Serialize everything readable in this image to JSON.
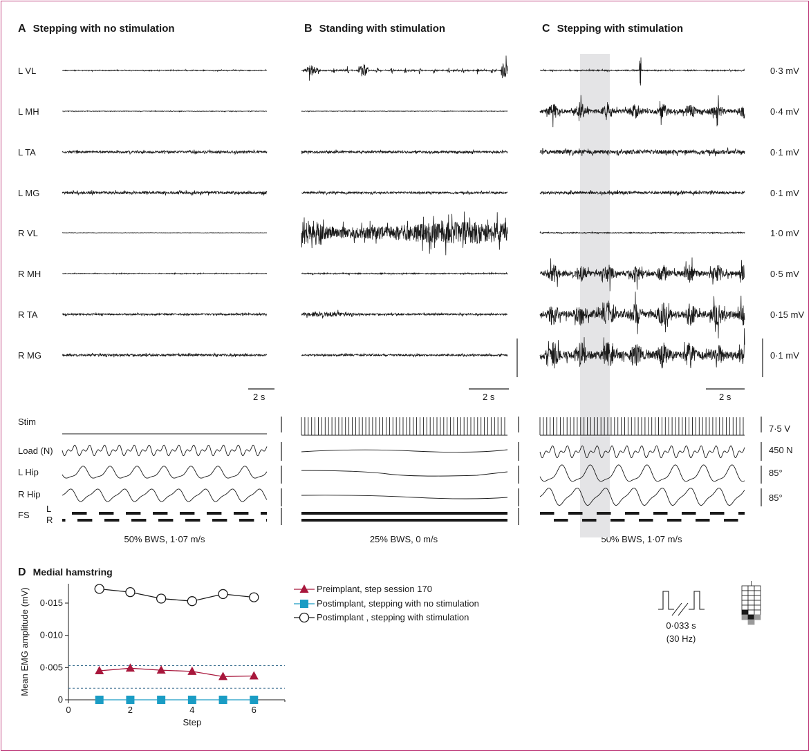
{
  "panels": {
    "a": {
      "letter": "A",
      "title": "Stepping with no stimulation",
      "condition": "50% BWS, 1·07 m/s",
      "scale_label": "2 s"
    },
    "b": {
      "letter": "B",
      "title": "Standing with stimulation",
      "condition": "25% BWS, 0 m/s",
      "scale_label": "2 s"
    },
    "c": {
      "letter": "C",
      "title": "Stepping with stimulation",
      "condition": "50% BWS, 1·07 m/s",
      "scale_label": "2 s"
    }
  },
  "emg_rows": [
    {
      "label": "L VL",
      "scale": "0·3 mV"
    },
    {
      "label": "L MH",
      "scale": "0·4 mV"
    },
    {
      "label": "L TA",
      "scale": "0·1 mV"
    },
    {
      "label": "L MG",
      "scale": "0·1 mV"
    },
    {
      "label": "R VL",
      "scale": "1·0 mV"
    },
    {
      "label": "R MH",
      "scale": "0·5 mV"
    },
    {
      "label": "R TA",
      "scale": "0·15 mV"
    },
    {
      "label": "R MG",
      "scale": "0·1 mV"
    }
  ],
  "kin_rows": [
    {
      "label": "Stim",
      "scale": "7·5 V"
    },
    {
      "label": "Load (N)",
      "scale": "450 N"
    },
    {
      "label": "L Hip",
      "scale": "85°"
    },
    {
      "label": "R Hip",
      "scale": "85°"
    }
  ],
  "footswitch": {
    "label": "FS",
    "left": "L",
    "right": "R"
  },
  "panel_d": {
    "letter": "D",
    "title": "Medial hamstring",
    "stim_period": "0·033 s",
    "stim_freq": "(30 Hz)"
  },
  "chart_data": {
    "type": "line",
    "title": "Medial hamstring",
    "xlabel": "Step",
    "ylabel": "Mean EMG amplitude (mV)",
    "xlim": [
      0,
      7
    ],
    "ylim": [
      0,
      0.018
    ],
    "xticks": [
      "0",
      "2",
      "4",
      "6"
    ],
    "yticks": [
      "0",
      "0·005",
      "0·010",
      "0·015"
    ],
    "x": [
      1,
      2,
      3,
      4,
      5,
      6
    ],
    "series": [
      {
        "name": "Preimplant, step session 170",
        "marker": "triangle",
        "color": "#a8173c",
        "values": [
          0.0045,
          0.0049,
          0.0046,
          0.0044,
          0.0036,
          0.0037
        ]
      },
      {
        "name": "Postimplant, stepping with no stimulation",
        "marker": "square",
        "color": "#1a9cc4",
        "values": [
          0,
          0,
          0,
          0,
          0,
          0
        ]
      },
      {
        "name": "Postimplant , stepping with stimulation",
        "marker": "circle",
        "color": "#1a1a1a",
        "values": [
          0.0172,
          0.0167,
          0.0157,
          0.0153,
          0.0164,
          0.0159
        ]
      }
    ],
    "reference_lines": [
      0.0053,
      0.0018
    ]
  }
}
